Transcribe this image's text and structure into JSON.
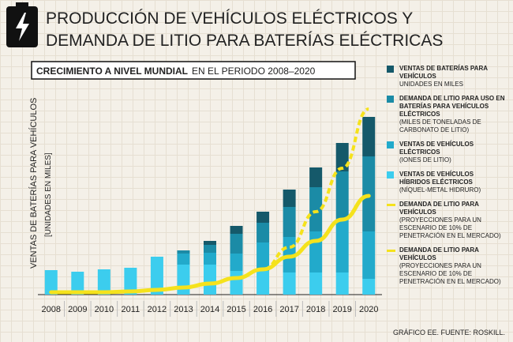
{
  "chart_data": {
    "type": "bar",
    "title": "PRODUCCIÓN DE VEHÍCULOS ELÉCTRICOS Y DEMANDA DE LITIO PARA BATERÍAS ELÉCTRICAS",
    "subtitle_bold": "CRECIMIENTO A NIVEL MUNDIAL",
    "subtitle": "EN EL PERIODO 2008–2020",
    "y_label": "VENTAS DE BATERÍAS PARA VEHÍCULOS",
    "y_unit": "[UNIDADES EN MILES]",
    "source": "GRÁFICO EE. FUENTE: ROSKILL.",
    "categories": [
      "2008",
      "2009",
      "2010",
      "2011",
      "2012",
      "2013",
      "2014",
      "2015",
      "2016",
      "2017",
      "2018",
      "2019",
      "2020"
    ],
    "ylim": [
      0,
      240
    ],
    "series": [
      {
        "name": "VENTAS DE BATERÍAS PARA VEHÍCULOS",
        "note": "UNIDADES EN MILES",
        "type": "bar",
        "color": "#15596a",
        "values": [
          0,
          0,
          0,
          0,
          0,
          0,
          5,
          10,
          14,
          22,
          25,
          36,
          50
        ]
      },
      {
        "name": "DEMANDA DE LITIO PARA USO EN BATERÍAS PARA VEHÍCULOS ELÉCTRICOS",
        "note": "(MILES DE TONELADAS DE CARBONATO DE LITIO)",
        "type": "bar",
        "color": "#1b8ba6",
        "values": [
          0,
          0,
          0,
          0,
          0,
          4,
          10,
          25,
          25,
          38,
          56,
          60,
          95
        ]
      },
      {
        "name": "VENTAS DE VEHÍCULOS ELÉCTRICOS",
        "note": "(IONES DE LITIO)",
        "type": "bar",
        "color": "#22aacb",
        "values": [
          0,
          0,
          0,
          0,
          0,
          14,
          15,
          22,
          36,
          45,
          52,
          68,
          60
        ]
      },
      {
        "name": "VENTAS DE VEHÍCULOS HÍBRIDOS ELÉCTRICOS",
        "note": "(NÍQUEL-METAL HIDRURO)",
        "type": "bar",
        "color": "#3ccdee",
        "values": [
          31,
          29,
          32,
          34,
          48,
          38,
          38,
          30,
          30,
          28,
          28,
          28,
          20
        ]
      },
      {
        "name": "DEMANDA DE LITIO PARA VEHÍCULOS",
        "note": "(PROYECCIONES PARA UN ESCENARIO DE 10% DE PENETRACIÓN EN EL MERCADO)",
        "type": "line",
        "dashed": false,
        "color": "#f5e21c",
        "values": [
          3,
          3,
          3,
          4,
          6,
          9,
          14,
          21,
          32,
          48,
          68,
          95,
          125
        ]
      },
      {
        "name": "DEMANDA DE LITIO PARA VEHÍCULOS",
        "note": "(PROYECCIONES PARA UN ESCENARIO DE 10% DE PENETRACIÓN EN EL MERCADO)",
        "type": "line",
        "dashed": true,
        "color": "#f5e21c",
        "values": [
          3,
          3,
          3,
          4,
          6,
          9,
          14,
          21,
          32,
          60,
          105,
          160,
          235
        ]
      }
    ]
  }
}
